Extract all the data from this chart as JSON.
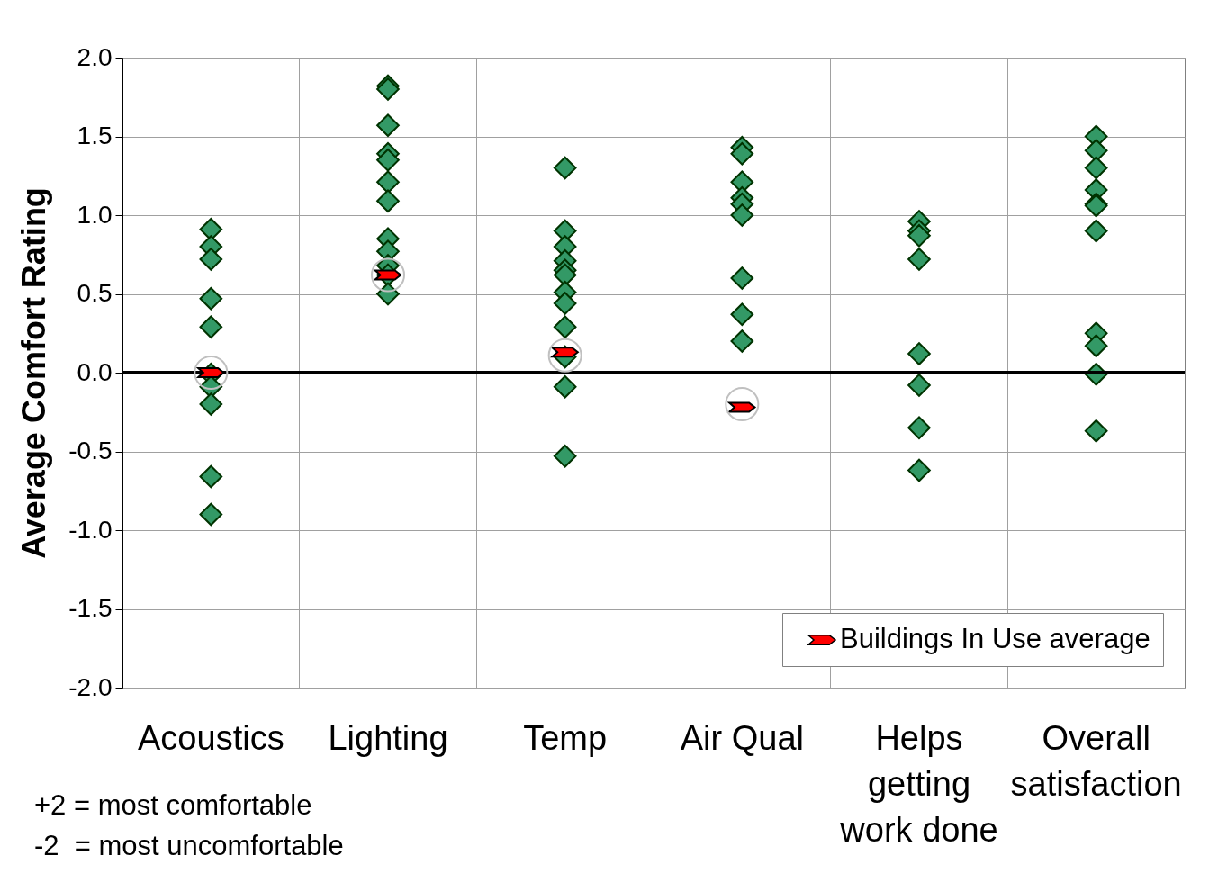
{
  "chart_data": {
    "type": "scatter",
    "ylabel": "Average  Comfort  Rating",
    "categories": [
      "Acoustics",
      "Lighting",
      "Temp",
      "Air Qual",
      "Helps getting work done",
      "Overall satisfaction"
    ],
    "series": [
      {
        "color": "#339966",
        "marker": "diamond",
        "x": [
          "Acoustics",
          "Acoustics",
          "Acoustics",
          "Acoustics",
          "Acoustics",
          "Acoustics",
          "Acoustics",
          "Acoustics",
          "Acoustics",
          "Acoustics",
          "Lighting",
          "Lighting",
          "Lighting",
          "Lighting",
          "Lighting",
          "Lighting",
          "Lighting",
          "Lighting",
          "Lighting",
          "Lighting",
          "Lighting",
          "Lighting",
          "Temp",
          "Temp",
          "Temp",
          "Temp",
          "Temp",
          "Temp",
          "Temp",
          "Temp",
          "Temp",
          "Temp",
          "Temp",
          "Temp",
          "Air Qual",
          "Air Qual",
          "Air Qual",
          "Air Qual",
          "Air Qual",
          "Air Qual",
          "Air Qual",
          "Air Qual",
          "Air Qual",
          "Helps getting work done",
          "Helps getting work done",
          "Helps getting work done",
          "Helps getting work done",
          "Helps getting work done",
          "Helps getting work done",
          "Helps getting work done",
          "Helps getting work done",
          "Overall satisfaction",
          "Overall satisfaction",
          "Overall satisfaction",
          "Overall satisfaction",
          "Overall satisfaction",
          "Overall satisfaction",
          "Overall satisfaction",
          "Overall satisfaction",
          "Overall satisfaction",
          "Overall satisfaction",
          "Overall satisfaction"
        ],
        "values": [
          0.91,
          0.8,
          0.72,
          0.47,
          0.29,
          -0.01,
          -0.09,
          -0.2,
          -0.66,
          -0.9,
          1.82,
          1.8,
          1.57,
          1.39,
          1.35,
          1.21,
          1.09,
          0.85,
          0.77,
          0.68,
          0.62,
          0.5,
          1.3,
          0.9,
          0.8,
          0.71,
          0.65,
          0.62,
          0.51,
          0.44,
          0.29,
          0.1,
          -0.09,
          -0.53,
          1.43,
          1.39,
          1.21,
          1.11,
          1.07,
          1.0,
          0.6,
          0.37,
          0.2,
          0.96,
          0.9,
          0.87,
          0.72,
          0.12,
          -0.08,
          -0.35,
          -0.62,
          1.5,
          1.41,
          1.3,
          1.16,
          1.07,
          1.06,
          0.9,
          0.25,
          0.17,
          -0.01,
          -0.37
        ]
      },
      {
        "name": "Buildings In Use average",
        "color": "#ff0000",
        "marker": "triangle",
        "x": [
          "Acoustics",
          "Lighting",
          "Temp",
          "Air Qual"
        ],
        "values": [
          0.0,
          0.62,
          0.13,
          -0.22
        ]
      },
      {
        "color": "#c0c0c0",
        "marker": "circle",
        "x": [
          "Acoustics",
          "Lighting",
          "Temp",
          "Air Qual"
        ],
        "values": [
          0.0,
          0.62,
          0.11,
          -0.2
        ]
      }
    ],
    "ylim": [
      -2,
      2
    ],
    "yticks": [
      {
        "value": -2,
        "label": "-2.0"
      },
      {
        "value": -1.5,
        "label": "-1.5"
      },
      {
        "value": -1,
        "label": "-1.0"
      },
      {
        "value": -0.5,
        "label": "-0.5"
      },
      {
        "value": 0,
        "label": "0.0"
      },
      {
        "value": 0.5,
        "label": "0.5"
      },
      {
        "value": 1,
        "label": "1.0"
      },
      {
        "value": 1.5,
        "label": "1.5"
      },
      {
        "value": 2,
        "label": "2.0"
      }
    ],
    "ref_lines": [
      {
        "axis": "y",
        "value": 0,
        "color": "#000000"
      }
    ],
    "grid": true,
    "legend": "bottom right",
    "annotations": [
      "+2 = most comfortable",
      "-2  = most uncomfortable"
    ]
  }
}
